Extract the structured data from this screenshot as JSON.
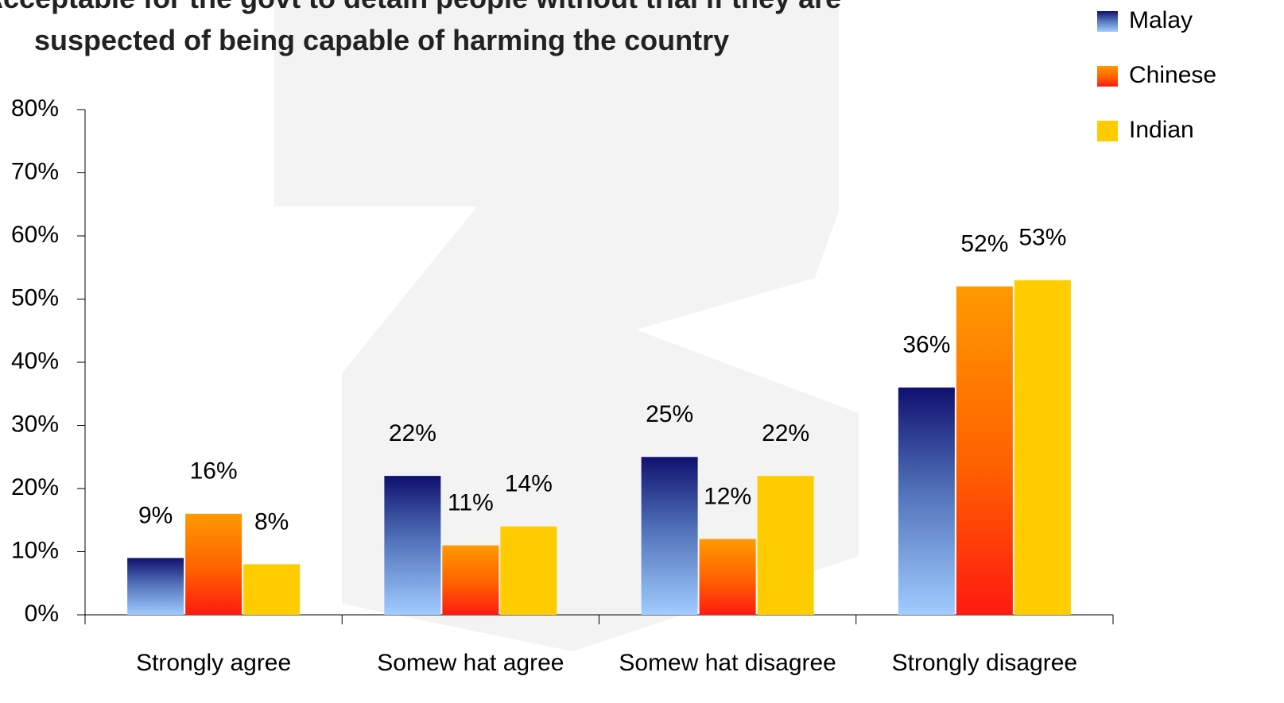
{
  "chart_data": {
    "type": "bar",
    "title": "Acceptable for the govt to detain people without trial if they are suspected of being capable of harming the country",
    "categories": [
      "Strongly  agree",
      "Somew hat agree",
      "Somew hat disagree",
      "Strongly  disagree"
    ],
    "series": [
      {
        "name": "Malay",
        "color": "#1a1a7a",
        "values": [
          9,
          22,
          25,
          36
        ],
        "value_labels": [
          "9%",
          "22%",
          "25%",
          "36%"
        ]
      },
      {
        "name": "Chinese",
        "color": "#ff8800",
        "values": [
          16,
          11,
          12,
          52
        ],
        "value_labels": [
          "16%",
          "11%",
          "12%",
          "52%"
        ]
      },
      {
        "name": "Indian",
        "color": "#ffcc00",
        "values": [
          8,
          14,
          22,
          53
        ],
        "value_labels": [
          "8%",
          "14%",
          "22%",
          "53%"
        ]
      }
    ],
    "ylim": [
      0,
      80
    ],
    "yticks": [
      {
        "value": 0,
        "label": "0%"
      },
      {
        "value": 10,
        "label": "10%"
      },
      {
        "value": 20,
        "label": "20%"
      },
      {
        "value": 30,
        "label": "30%"
      },
      {
        "value": 40,
        "label": "40%"
      },
      {
        "value": 50,
        "label": "50%"
      },
      {
        "value": 60,
        "label": "60%"
      },
      {
        "value": 70,
        "label": "70%"
      },
      {
        "value": 80,
        "label": "80%"
      }
    ]
  }
}
